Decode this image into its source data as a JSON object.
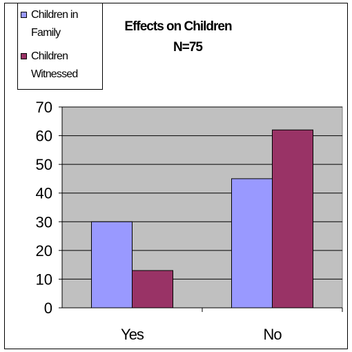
{
  "chart_data": {
    "type": "bar",
    "title": "Effects on Children",
    "subtitle": "N=75",
    "categories": [
      "Yes",
      "No"
    ],
    "series": [
      {
        "name": "Children in Family",
        "values": [
          30,
          45
        ],
        "color": "#9999ff"
      },
      {
        "name": "Children Witnessed",
        "values": [
          13,
          62
        ],
        "color": "#993366"
      }
    ],
    "ylim": [
      0,
      70
    ],
    "yticks": [
      0,
      10,
      20,
      30,
      40,
      50,
      60,
      70
    ],
    "grid": true,
    "plot_background": "#c0c0c0",
    "legend_position": "top-left"
  }
}
